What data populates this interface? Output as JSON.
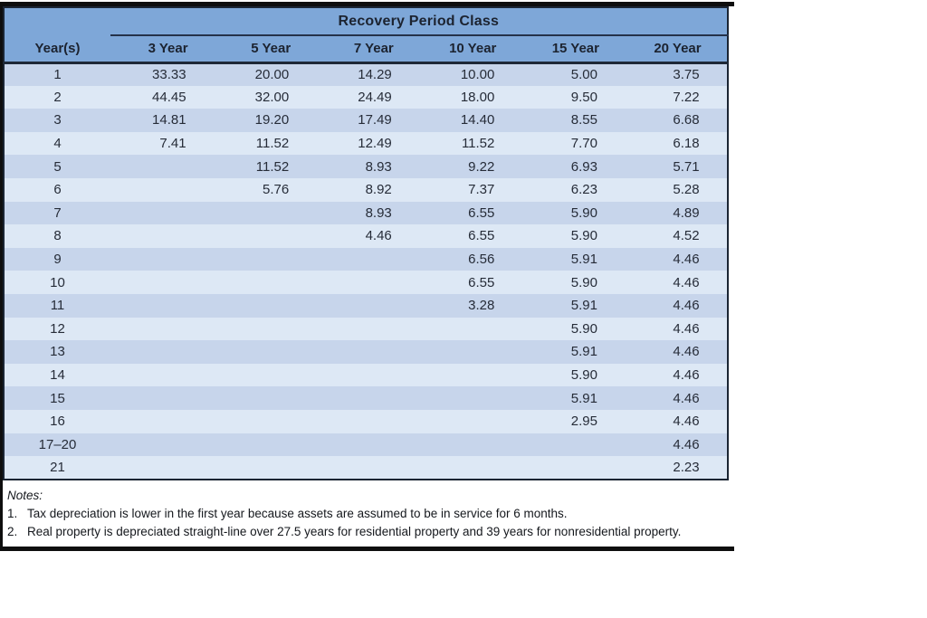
{
  "table": {
    "title": "Recovery Period Class",
    "row_header": "Year(s)",
    "columns": [
      "3 Year",
      "5 Year",
      "7 Year",
      "10 Year",
      "15 Year",
      "20 Year"
    ],
    "rows": [
      {
        "year": "1",
        "values": [
          "33.33",
          "20.00",
          "14.29",
          "10.00",
          "5.00",
          "3.75"
        ]
      },
      {
        "year": "2",
        "values": [
          "44.45",
          "32.00",
          "24.49",
          "18.00",
          "9.50",
          "7.22"
        ]
      },
      {
        "year": "3",
        "values": [
          "14.81",
          "19.20",
          "17.49",
          "14.40",
          "8.55",
          "6.68"
        ]
      },
      {
        "year": "4",
        "values": [
          "7.41",
          "11.52",
          "12.49",
          "11.52",
          "7.70",
          "6.18"
        ]
      },
      {
        "year": "5",
        "values": [
          "",
          "11.52",
          "8.93",
          "9.22",
          "6.93",
          "5.71"
        ]
      },
      {
        "year": "6",
        "values": [
          "",
          "5.76",
          "8.92",
          "7.37",
          "6.23",
          "5.28"
        ]
      },
      {
        "year": "7",
        "values": [
          "",
          "",
          "8.93",
          "6.55",
          "5.90",
          "4.89"
        ]
      },
      {
        "year": "8",
        "values": [
          "",
          "",
          "4.46",
          "6.55",
          "5.90",
          "4.52"
        ]
      },
      {
        "year": "9",
        "values": [
          "",
          "",
          "",
          "6.56",
          "5.91",
          "4.46"
        ]
      },
      {
        "year": "10",
        "values": [
          "",
          "",
          "",
          "6.55",
          "5.90",
          "4.46"
        ]
      },
      {
        "year": "11",
        "values": [
          "",
          "",
          "",
          "3.28",
          "5.91",
          "4.46"
        ]
      },
      {
        "year": "12",
        "values": [
          "",
          "",
          "",
          "",
          "5.90",
          "4.46"
        ]
      },
      {
        "year": "13",
        "values": [
          "",
          "",
          "",
          "",
          "5.91",
          "4.46"
        ]
      },
      {
        "year": "14",
        "values": [
          "",
          "",
          "",
          "",
          "5.90",
          "4.46"
        ]
      },
      {
        "year": "15",
        "values": [
          "",
          "",
          "",
          "",
          "5.91",
          "4.46"
        ]
      },
      {
        "year": "16",
        "values": [
          "",
          "",
          "",
          "",
          "2.95",
          "4.46"
        ]
      },
      {
        "year": "17–20",
        "values": [
          "",
          "",
          "",
          "",
          "",
          "4.46"
        ]
      },
      {
        "year": "21",
        "values": [
          "",
          "",
          "",
          "",
          "",
          "2.23"
        ]
      }
    ]
  },
  "notes": {
    "label": "Notes:",
    "items": [
      {
        "num": "1.",
        "text": "Tax depreciation is lower in the first year because assets are assumed to be in service for 6 months."
      },
      {
        "num": "2.",
        "text": "Real property is depreciated straight-line over 27.5 years for residential property and 39 years for nonresidential property."
      }
    ]
  },
  "colors": {
    "header_bg": "#7ea7d8",
    "row_dark": "#c7d5eb",
    "row_light": "#dde8f5",
    "rule": "#25324a",
    "frame": "#0e0e0e",
    "heading_text": "#1c2330"
  }
}
